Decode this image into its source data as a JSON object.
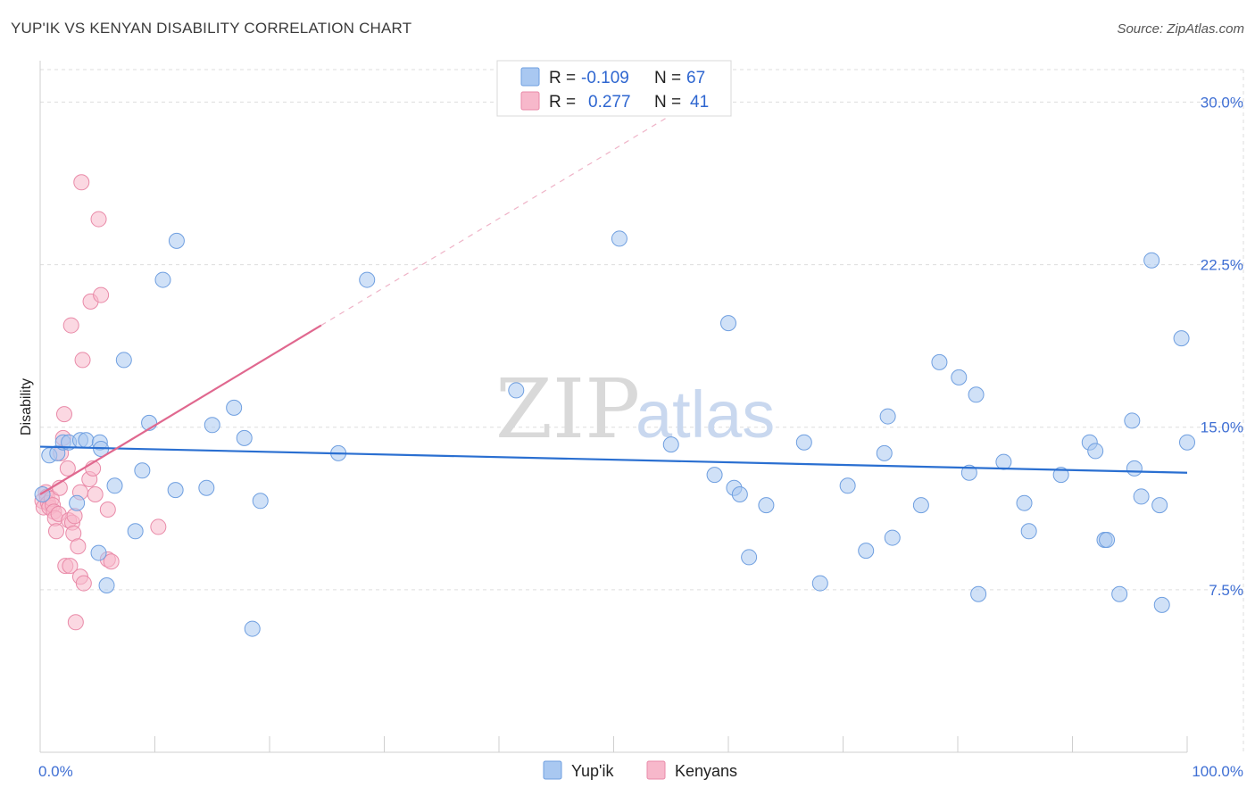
{
  "header": {
    "title": "YUP'IK VS KENYAN DISABILITY CORRELATION CHART",
    "source": "Source: ZipAtlas.com"
  },
  "watermark": {
    "zip": "ZIP",
    "atlas": "atlas"
  },
  "legend": {
    "series": [
      {
        "r_label": "R =",
        "r_value": "-0.109",
        "n_label": "N =",
        "n_value": "67"
      },
      {
        "r_label": "R =",
        "r_value": "0.277",
        "n_label": "N =",
        "n_value": "41"
      }
    ]
  },
  "chart_data": {
    "type": "scatter",
    "title": "YUP'IK VS KENYAN DISABILITY CORRELATION CHART",
    "xlabel": "",
    "ylabel": "Disability",
    "xlim": [
      0,
      100
    ],
    "ylim": [
      0,
      31.5
    ],
    "x_tick_labels": [
      "0.0%",
      "100.0%"
    ],
    "y_ticks": [
      {
        "value": 7.5,
        "label": "7.5%"
      },
      {
        "value": 15.0,
        "label": "15.0%"
      },
      {
        "value": 22.5,
        "label": "22.5%"
      },
      {
        "value": 30.0,
        "label": "30.0%"
      }
    ],
    "colors": {
      "yupik_fill": "#a9c8f1",
      "yupik_stroke": "#6f9fe0",
      "yupik_line": "#2a6fd1",
      "kenyan_fill": "#f7b8cb",
      "kenyan_stroke": "#e98aa8",
      "kenyan_line": "#e0688f",
      "grid": "#dddddd",
      "axis": "#cfcfcf"
    },
    "series": [
      {
        "name": "Yup'ik",
        "trend": {
          "x0": 0,
          "y0": 14.1,
          "x1": 100,
          "y1": 12.9
        },
        "points": [
          [
            0.8,
            13.7
          ],
          [
            1.5,
            13.8
          ],
          [
            2.0,
            14.3
          ],
          [
            2.5,
            14.3
          ],
          [
            3.5,
            14.4
          ],
          [
            4.0,
            14.4
          ],
          [
            5.2,
            14.3
          ],
          [
            5.3,
            14.0
          ],
          [
            3.2,
            11.5
          ],
          [
            6.5,
            12.3
          ],
          [
            5.1,
            9.2
          ],
          [
            5.8,
            7.7
          ],
          [
            7.3,
            18.1
          ],
          [
            8.3,
            10.2
          ],
          [
            8.9,
            13.0
          ],
          [
            9.5,
            15.2
          ],
          [
            10.7,
            21.8
          ],
          [
            11.8,
            12.1
          ],
          [
            11.9,
            23.6
          ],
          [
            14.5,
            12.2
          ],
          [
            15.0,
            15.1
          ],
          [
            16.9,
            15.9
          ],
          [
            17.8,
            14.5
          ],
          [
            18.5,
            5.7
          ],
          [
            19.2,
            11.6
          ],
          [
            26.0,
            13.8
          ],
          [
            28.5,
            21.8
          ],
          [
            41.5,
            16.7
          ],
          [
            50.5,
            23.7
          ],
          [
            55.0,
            14.2
          ],
          [
            58.8,
            12.8
          ],
          [
            60.0,
            19.8
          ],
          [
            60.5,
            12.2
          ],
          [
            61.0,
            11.9
          ],
          [
            61.8,
            9.0
          ],
          [
            63.3,
            11.4
          ],
          [
            66.6,
            14.3
          ],
          [
            68.0,
            7.8
          ],
          [
            70.4,
            12.3
          ],
          [
            72.0,
            9.3
          ],
          [
            73.6,
            13.8
          ],
          [
            73.9,
            15.5
          ],
          [
            74.3,
            9.9
          ],
          [
            76.8,
            11.4
          ],
          [
            78.4,
            18.0
          ],
          [
            80.1,
            17.3
          ],
          [
            81.0,
            12.9
          ],
          [
            81.6,
            16.5
          ],
          [
            81.8,
            7.3
          ],
          [
            84.0,
            13.4
          ],
          [
            85.8,
            11.5
          ],
          [
            86.2,
            10.2
          ],
          [
            89.0,
            12.8
          ],
          [
            91.5,
            14.3
          ],
          [
            92.0,
            13.9
          ],
          [
            92.8,
            9.8
          ],
          [
            93.0,
            9.8
          ],
          [
            94.1,
            7.3
          ],
          [
            95.2,
            15.3
          ],
          [
            95.4,
            13.1
          ],
          [
            96.0,
            11.8
          ],
          [
            96.9,
            22.7
          ],
          [
            97.6,
            11.4
          ],
          [
            97.8,
            6.8
          ],
          [
            99.5,
            19.1
          ],
          [
            100.0,
            14.3
          ],
          [
            0.2,
            11.9
          ]
        ]
      },
      {
        "name": "Kenyans",
        "trend": {
          "x0": 0,
          "y0": 11.9,
          "x1": 24.5,
          "y1": 19.7,
          "dash_to_x": 55,
          "dash_to_y": 29.4
        },
        "points": [
          [
            0.2,
            11.6
          ],
          [
            0.3,
            11.3
          ],
          [
            0.5,
            12.0
          ],
          [
            0.6,
            11.8
          ],
          [
            0.7,
            11.5
          ],
          [
            0.8,
            11.3
          ],
          [
            1.0,
            11.7
          ],
          [
            1.1,
            11.4
          ],
          [
            1.2,
            11.1
          ],
          [
            1.3,
            10.8
          ],
          [
            1.4,
            10.2
          ],
          [
            1.6,
            11.0
          ],
          [
            1.7,
            12.2
          ],
          [
            1.8,
            13.8
          ],
          [
            2.0,
            14.5
          ],
          [
            2.1,
            15.6
          ],
          [
            2.2,
            8.6
          ],
          [
            2.4,
            13.1
          ],
          [
            2.5,
            10.7
          ],
          [
            2.6,
            8.6
          ],
          [
            2.7,
            19.7
          ],
          [
            2.8,
            10.6
          ],
          [
            2.9,
            10.1
          ],
          [
            3.0,
            10.9
          ],
          [
            3.1,
            6.0
          ],
          [
            3.3,
            9.5
          ],
          [
            3.5,
            12.0
          ],
          [
            3.5,
            8.1
          ],
          [
            3.6,
            26.3
          ],
          [
            3.7,
            18.1
          ],
          [
            3.8,
            7.8
          ],
          [
            4.3,
            12.6
          ],
          [
            4.4,
            20.8
          ],
          [
            4.6,
            13.1
          ],
          [
            4.8,
            11.9
          ],
          [
            5.1,
            24.6
          ],
          [
            5.3,
            21.1
          ],
          [
            5.9,
            8.9
          ],
          [
            5.9,
            11.2
          ],
          [
            6.2,
            8.8
          ],
          [
            10.3,
            10.4
          ]
        ]
      }
    ]
  },
  "bottom_legend": {
    "items": [
      {
        "label": "Yup'ik"
      },
      {
        "label": "Kenyans"
      }
    ]
  }
}
